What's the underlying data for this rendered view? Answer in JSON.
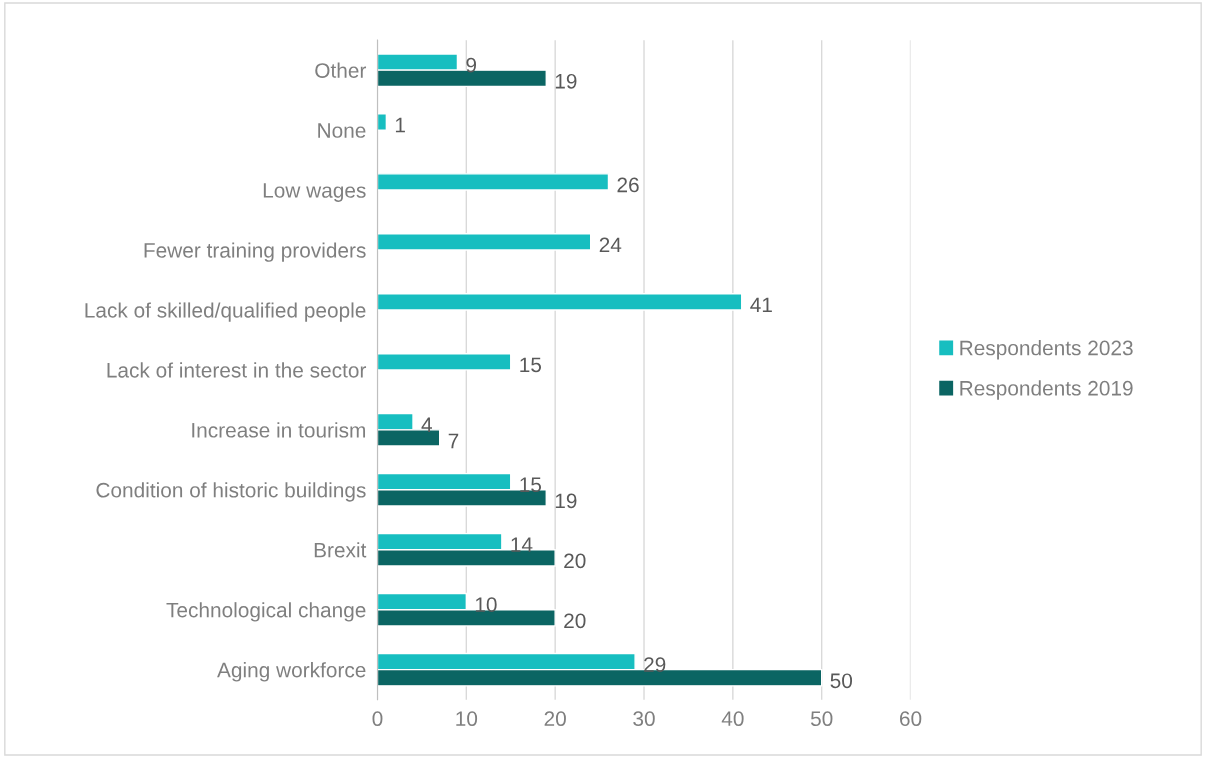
{
  "chart_data": {
    "type": "bar",
    "orientation": "horizontal",
    "categories": [
      "Other",
      "None",
      "Low wages",
      "Fewer training providers",
      "Lack of skilled/qualified people",
      "Lack of interest in the sector",
      "Increase in tourism",
      "Condition of historic buildings",
      "Brexit",
      "Technological change",
      "Aging workforce"
    ],
    "series": [
      {
        "name": "Respondents 2023",
        "color": "#17bec0",
        "values": [
          9,
          1,
          26,
          24,
          41,
          15,
          4,
          15,
          14,
          10,
          29
        ]
      },
      {
        "name": "Respondents 2019",
        "color": "#0b6563",
        "values": [
          19,
          null,
          null,
          null,
          null,
          null,
          7,
          19,
          20,
          20,
          50
        ]
      }
    ],
    "xlim": [
      0,
      60
    ],
    "xticks": [
      0,
      10,
      20,
      30,
      40,
      50,
      60
    ],
    "grid": "x",
    "legend": "right",
    "data_labels": true
  }
}
